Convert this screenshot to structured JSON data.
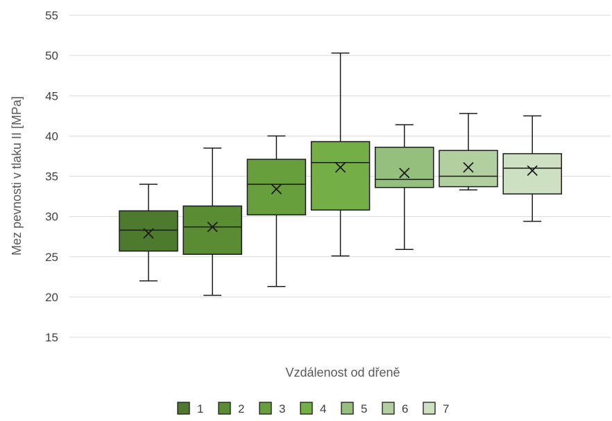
{
  "chart_data": {
    "type": "box",
    "title": "",
    "xlabel": "Vzdálenost od dřeně",
    "ylabel": "Mez pevnosti v tlaku II [MPa]",
    "ylim": [
      15,
      55
    ],
    "yticks": [
      15,
      20,
      25,
      30,
      35,
      40,
      45,
      50,
      55
    ],
    "grid": true,
    "legend_position": "bottom",
    "series": [
      {
        "name": "1",
        "color": "#4e7a2e",
        "min": 22.0,
        "q1": 25.7,
        "median": 28.3,
        "q3": 30.7,
        "max": 34.0,
        "mean": 27.9
      },
      {
        "name": "2",
        "color": "#5a8c34",
        "min": 20.2,
        "q1": 25.3,
        "median": 28.7,
        "q3": 31.3,
        "max": 38.5,
        "mean": 28.7
      },
      {
        "name": "3",
        "color": "#689f3d",
        "min": 21.3,
        "q1": 30.2,
        "median": 34.0,
        "q3": 37.1,
        "max": 40.0,
        "mean": 33.4
      },
      {
        "name": "4",
        "color": "#74ae47",
        "min": 25.1,
        "q1": 30.8,
        "median": 36.7,
        "q3": 39.3,
        "max": 50.3,
        "mean": 36.1
      },
      {
        "name": "5",
        "color": "#94bf7c",
        "min": 25.9,
        "q1": 33.6,
        "median": 34.6,
        "q3": 38.6,
        "max": 41.4,
        "mean": 35.4
      },
      {
        "name": "6",
        "color": "#b1cf9f",
        "min": 33.3,
        "q1": 33.7,
        "median": 35.0,
        "q3": 38.2,
        "max": 42.8,
        "mean": 36.1
      },
      {
        "name": "7",
        "color": "#cde0c1",
        "min": 29.4,
        "q1": 32.8,
        "median": 36.0,
        "q3": 37.8,
        "max": 42.5,
        "mean": 35.7
      }
    ]
  }
}
